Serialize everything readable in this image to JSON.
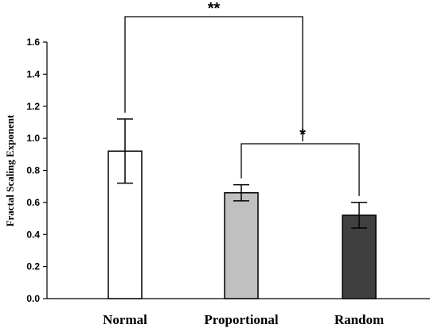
{
  "chart_data": {
    "type": "bar",
    "title": "",
    "xlabel": "",
    "ylabel": "Fractal Scaling Exponent",
    "ylim": [
      0,
      1.6
    ],
    "yticks": [
      "0.0",
      "0.2",
      "0.4",
      "0.6",
      "0.8",
      "1.0",
      "1.2",
      "1.4",
      "1.6"
    ],
    "categories": [
      "Normal",
      "Proportional",
      "Random"
    ],
    "values": [
      0.92,
      0.66,
      0.52
    ],
    "errors": [
      0.2,
      0.05,
      0.08
    ],
    "bar_colors": [
      "#ffffff",
      "#c0c0c0",
      "#404040"
    ],
    "grid": false,
    "significance": [
      {
        "from": 0,
        "to": 2,
        "bracket_y": 1.78,
        "label": "**"
      },
      {
        "from": 1,
        "to": 2,
        "bracket_y": 0.97,
        "label": "*"
      }
    ]
  }
}
